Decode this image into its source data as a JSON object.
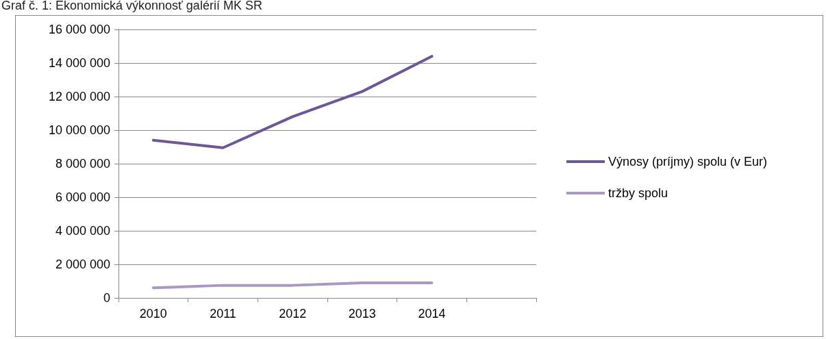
{
  "chart_data": {
    "type": "line",
    "title": "Graf č. 1:  Ekonomická výkonnosť galérií MK SR",
    "categories": [
      "2010",
      "2011",
      "2012",
      "2013",
      "2014",
      null
    ],
    "series": [
      {
        "name": "Výnosy (príjmy) spolu (v Eur)",
        "color": "#6e5797",
        "values": [
          9400000,
          8950000,
          10800000,
          12300000,
          14400000,
          null
        ]
      },
      {
        "name": "tržby spolu",
        "color": "#a999c2",
        "values": [
          600000,
          750000,
          750000,
          900000,
          900000,
          null
        ]
      }
    ],
    "ylim": [
      0,
      16000000
    ],
    "yticks": [
      0,
      2000000,
      4000000,
      6000000,
      8000000,
      10000000,
      12000000,
      14000000,
      16000000
    ],
    "grid": "y",
    "legend": "right",
    "marker": "none",
    "line_style": "solid"
  }
}
